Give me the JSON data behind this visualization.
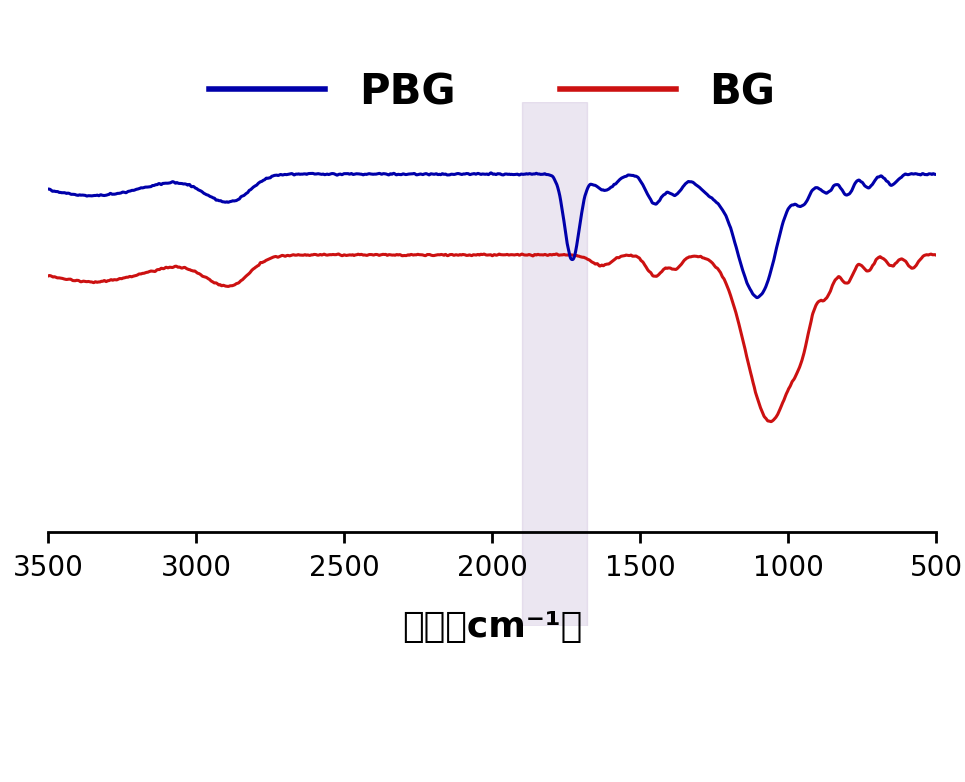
{
  "xlabel": "波长（cm⁻¹）",
  "xlim": [
    3500,
    500
  ],
  "xticks": [
    3500,
    3000,
    2500,
    2000,
    1500,
    1000,
    500
  ],
  "highlight_region": [
    1680,
    1900
  ],
  "highlight_color": "#c8b8d8",
  "highlight_alpha": 0.35,
  "pbg_color": "#0000aa",
  "bg_color": "#cc1111",
  "pbg_label": "PBG",
  "bg_label": "BG",
  "legend_fontsize": 30,
  "xlabel_fontsize": 26,
  "tick_fontsize": 20,
  "line_width": 2.2,
  "background_color": "#ffffff"
}
